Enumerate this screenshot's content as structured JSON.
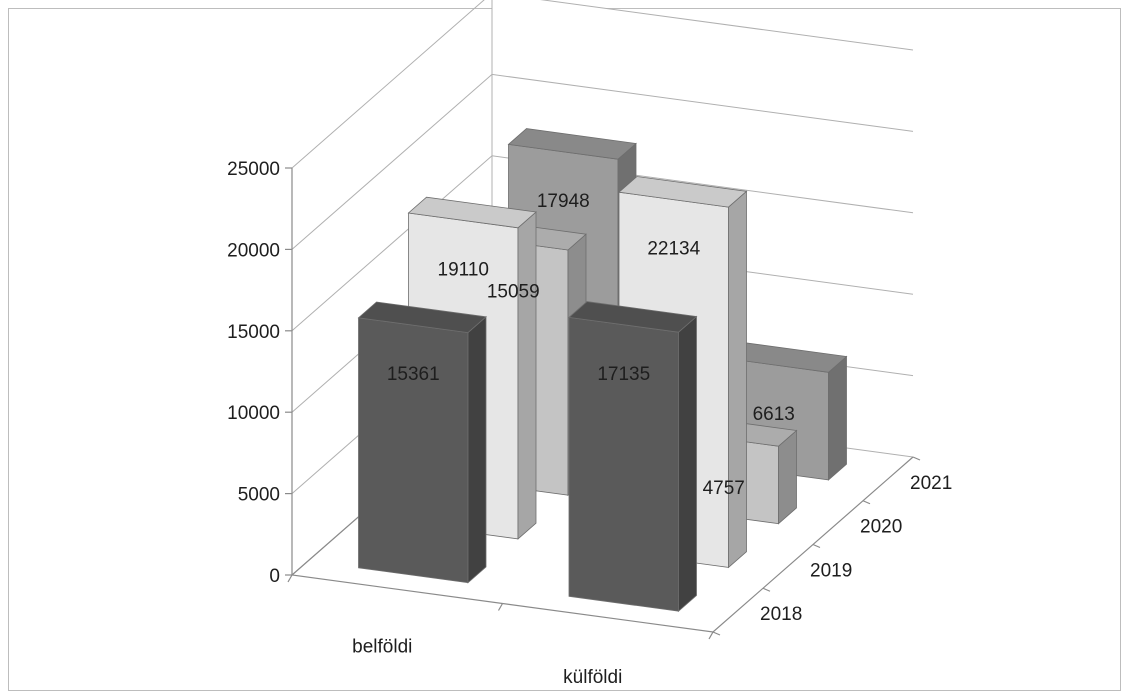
{
  "chart_data": {
    "type": "bar",
    "variant": "3d-grouped",
    "title": "",
    "xlabel": "",
    "ylabel": "",
    "categories": [
      "belföldi",
      "külföldi"
    ],
    "series": [
      {
        "name": "2018",
        "values": [
          15361,
          17135
        ],
        "color": "#5a5a5a"
      },
      {
        "name": "2019",
        "values": [
          19110,
          22134
        ],
        "color": "#e6e6e6"
      },
      {
        "name": "2020",
        "values": [
          15059,
          4757
        ],
        "color": "#c4c4c4"
      },
      {
        "name": "2021",
        "values": [
          17948,
          6613
        ],
        "color": "#9c9c9c"
      }
    ],
    "ylim": [
      0,
      25000
    ],
    "yticks": [
      0,
      5000,
      10000,
      15000,
      20000,
      25000
    ],
    "grid": true,
    "legend": "none"
  }
}
